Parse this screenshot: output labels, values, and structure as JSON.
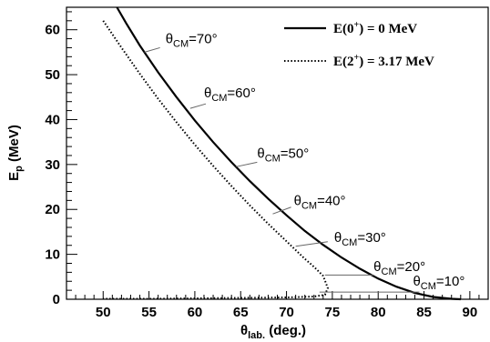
{
  "chart_data": {
    "type": "line",
    "xlabel": {
      "main": "θ",
      "sub": "lab.",
      "rest": " (deg.)"
    },
    "ylabel": {
      "main": "E",
      "sub": "p",
      "rest": " (MeV)"
    },
    "xlim": [
      46,
      92
    ],
    "ylim": [
      0,
      65
    ],
    "xticks": [
      50,
      55,
      60,
      65,
      70,
      75,
      80,
      85,
      90
    ],
    "yticks": [
      0,
      10,
      20,
      30,
      40,
      50,
      60
    ],
    "legend_position": "top-right",
    "series": [
      {
        "name": "E(0⁺) = 0 MeV",
        "legend": {
          "pre": "E(0",
          "sup": "+",
          "post": ") = 0 MeV"
        },
        "style": "solid",
        "color": "#000000",
        "x": [
          51.5,
          52.5,
          54.0,
          56.0,
          58.0,
          60.0,
          62.0,
          64.0,
          66.0,
          68.0,
          70.0,
          72.0,
          74.0,
          76.0,
          78.0,
          80.0,
          82.0,
          84.0,
          86.0,
          88.0,
          89.0
        ],
        "y": [
          65.0,
          61.5,
          56.5,
          50.5,
          45.0,
          39.8,
          35.0,
          30.5,
          26.3,
          22.4,
          18.7,
          15.2,
          12.1,
          9.3,
          6.8,
          4.6,
          2.8,
          1.4,
          0.5,
          0.1,
          0.0
        ]
      },
      {
        "name": "E(2⁺) = 3.17 MeV",
        "legend": {
          "pre": "E(2",
          "sup": "+",
          "post": ") = 3.17 MeV"
        },
        "style": "dotted",
        "color": "#000000",
        "x": [
          50.0,
          52.0,
          54.0,
          56.0,
          58.0,
          60.0,
          62.0,
          64.0,
          66.0,
          68.0,
          70.0,
          72.0,
          73.0,
          74.0,
          74.5,
          74.2,
          73.0,
          70.0,
          65.0,
          60.0,
          55.0,
          50.0
        ],
        "y": [
          62.0,
          56.0,
          50.2,
          44.6,
          39.4,
          34.4,
          29.7,
          25.2,
          20.9,
          16.8,
          12.9,
          9.0,
          7.2,
          5.2,
          2.5,
          1.0,
          0.6,
          0.4,
          0.3,
          0.2,
          0.1,
          0.1
        ]
      }
    ],
    "angle_markers": [
      {
        "label": "70°",
        "x1": 54.5,
        "y1": 55.0,
        "x2": 56.2,
        "y2": 56.0,
        "tx": 56.8,
        "ty": 57.0
      },
      {
        "label": "60°",
        "x1": 59.5,
        "y1": 42.5,
        "x2": 61.2,
        "y2": 43.5,
        "tx": 61.0,
        "ty": 45.0
      },
      {
        "label": "50°",
        "x1": 64.5,
        "y1": 29.5,
        "x2": 66.8,
        "y2": 30.5,
        "tx": 66.8,
        "ty": 31.5
      },
      {
        "label": "40°",
        "x1": 68.5,
        "y1": 19.0,
        "x2": 70.5,
        "y2": 20.5,
        "tx": 70.8,
        "ty": 21.0
      },
      {
        "label": "30°",
        "x1": 71.0,
        "y1": 11.8,
        "x2": 74.5,
        "y2": 12.8,
        "tx": 75.2,
        "ty": 12.8
      },
      {
        "label": "20°",
        "x1": 74.2,
        "y1": 5.4,
        "x2": 79.5,
        "y2": 5.4,
        "tx": 79.5,
        "ty": 6.3
      },
      {
        "label": "10°",
        "x1": 73.6,
        "y1": 1.6,
        "x2": 84.5,
        "y2": 1.6,
        "tx": 83.8,
        "ty": 3.0
      }
    ],
    "angle_prefix": {
      "main": "θ",
      "sub": "CM",
      "rest": "="
    }
  }
}
